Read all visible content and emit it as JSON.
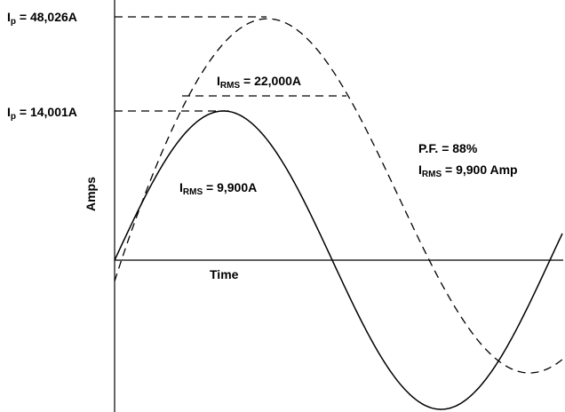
{
  "diagram": {
    "y_axis_label": "Amps",
    "x_axis_label": "Time",
    "peak_high": {
      "symbol": "I",
      "sub": "p",
      "value": " = 48,026A"
    },
    "peak_low": {
      "symbol": "I",
      "sub": "p",
      "value": " = 14,001A"
    },
    "rms_dashed": {
      "symbol": "I",
      "sub": "RMS",
      "value": " = 22,000A"
    },
    "rms_solid": {
      "symbol": "I",
      "sub": "RMS",
      "value": " = 9,900A"
    },
    "power_factor": "P.F. = 88%",
    "rms_total": {
      "symbol": "I",
      "sub": "RMS",
      "value": " = 9,900 Amp"
    },
    "colors": {
      "line": "#000000",
      "background": "#ffffff"
    }
  }
}
